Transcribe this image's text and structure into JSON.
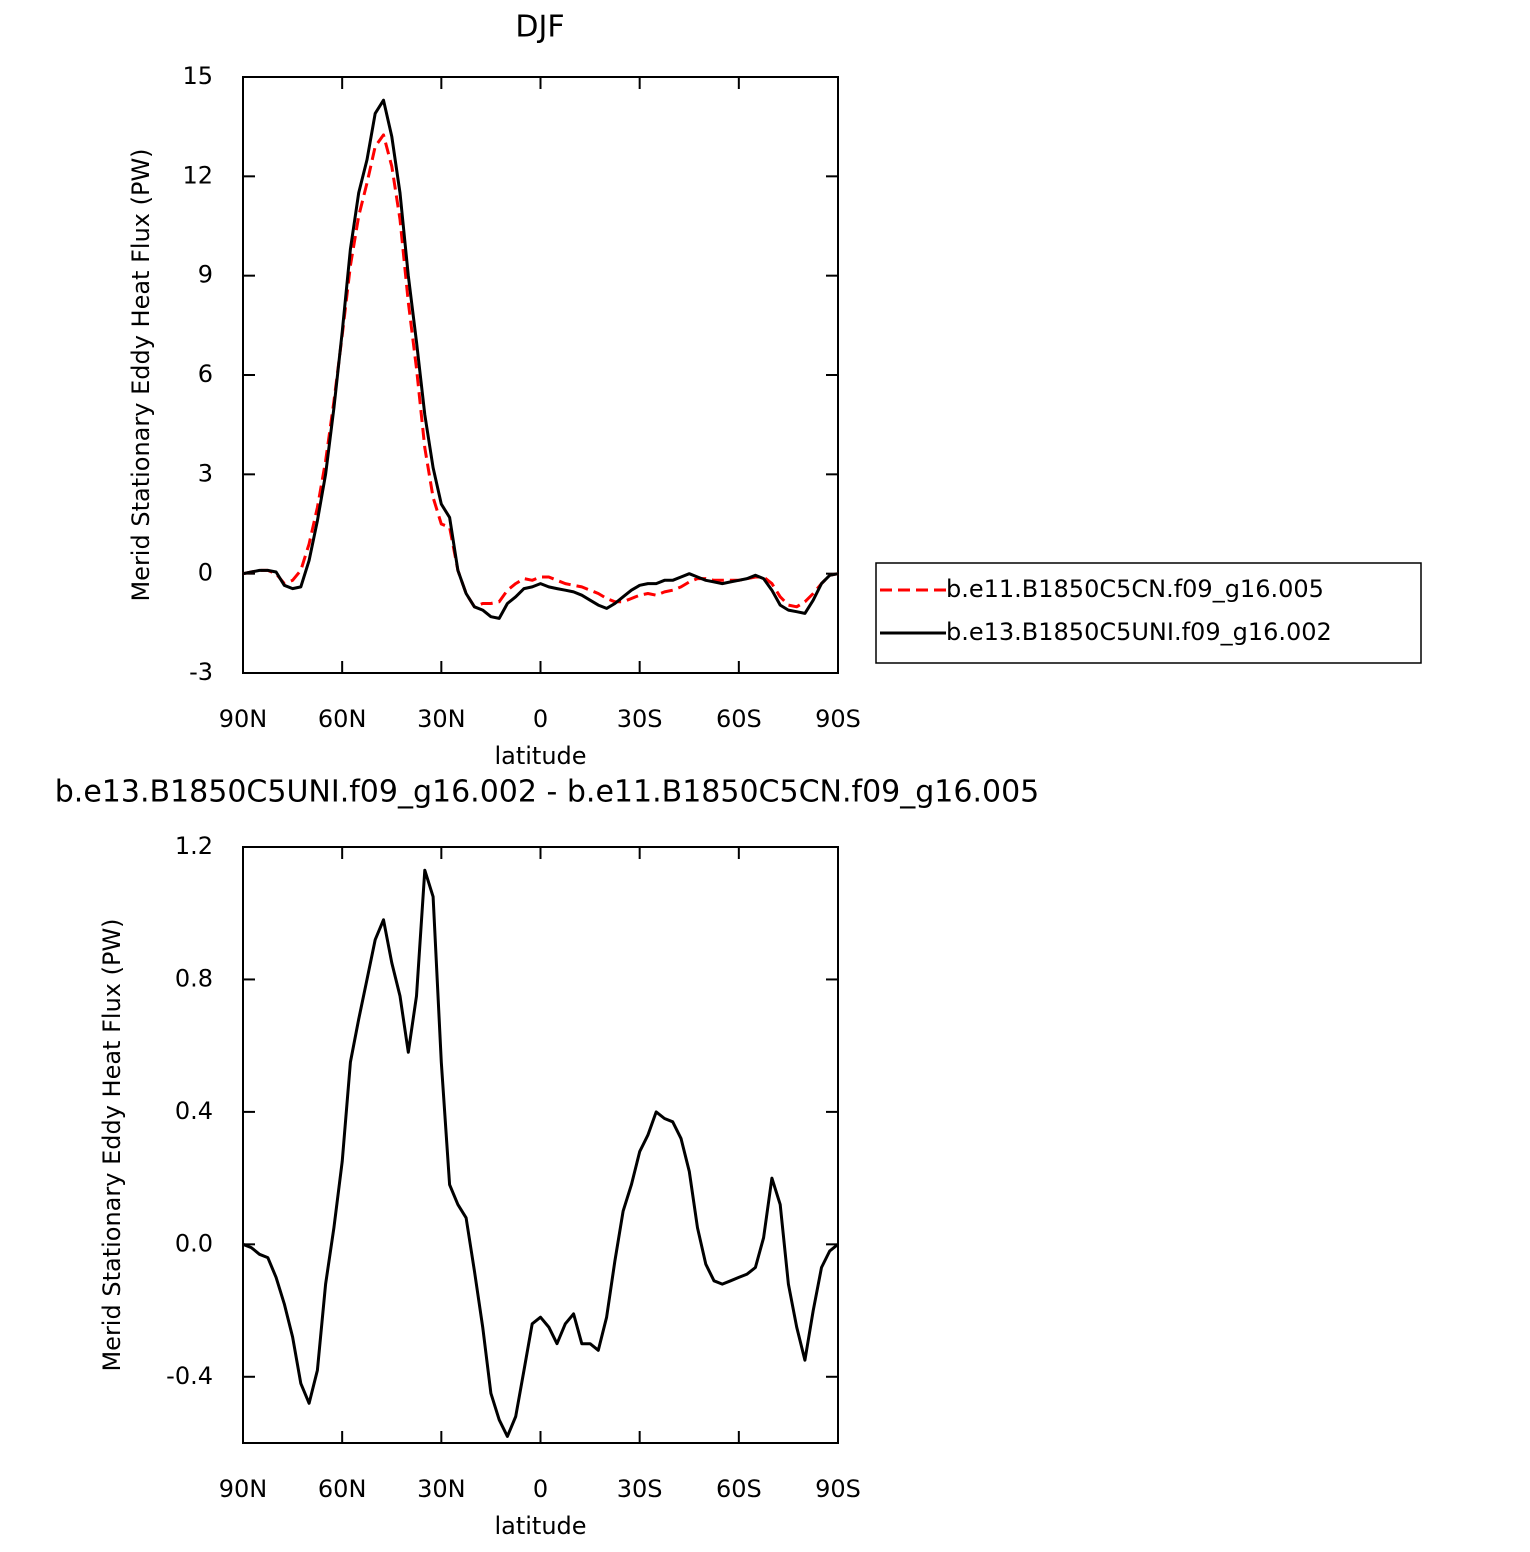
{
  "chart_data": [
    {
      "type": "line",
      "title": "DJF",
      "xlabel": "latitude",
      "ylabel": "Merid Stationary Eddy Heat Flux (PW)",
      "x": [
        90,
        87.5,
        85,
        82.5,
        80,
        77.5,
        75,
        72.5,
        70,
        67.5,
        65,
        62.5,
        60,
        57.5,
        55,
        52.5,
        50,
        47.5,
        45,
        42.5,
        40,
        37.5,
        35,
        32.5,
        30,
        27.5,
        25,
        22.5,
        20,
        17.5,
        15,
        12.5,
        10,
        7.5,
        5,
        2.5,
        0,
        -2.5,
        -5,
        -7.5,
        -10,
        -12.5,
        -15,
        -17.5,
        -20,
        -22.5,
        -25,
        -27.5,
        -30,
        -32.5,
        -35,
        -37.5,
        -40,
        -42.5,
        -45,
        -47.5,
        -50,
        -52.5,
        -55,
        -57.5,
        -60,
        -62.5,
        -65,
        -67.5,
        -70,
        -72.5,
        -75,
        -77.5,
        -80,
        -82.5,
        -85,
        -87.5,
        -90
      ],
      "series": [
        {
          "name": "b.e11.B1850C5CN.f09_g16.005",
          "color": "#ff0000",
          "dashed": true,
          "values": [
            0,
            0.05,
            0.1,
            0.1,
            0,
            -0.3,
            -0.2,
            0.1,
            0.9,
            2.0,
            3.4,
            5.2,
            7.2,
            9.3,
            10.8,
            11.8,
            12.9,
            13.25,
            12.3,
            10.7,
            8.2,
            6.2,
            3.8,
            2.3,
            1.5,
            1.4,
            0.1,
            -0.6,
            -1.0,
            -0.9,
            -0.9,
            -0.85,
            -0.5,
            -0.3,
            -0.15,
            -0.2,
            -0.1,
            -0.1,
            -0.2,
            -0.3,
            -0.35,
            -0.4,
            -0.5,
            -0.6,
            -0.75,
            -0.85,
            -0.85,
            -0.75,
            -0.65,
            -0.6,
            -0.65,
            -0.55,
            -0.5,
            -0.4,
            -0.25,
            -0.15,
            -0.15,
            -0.2,
            -0.2,
            -0.2,
            -0.2,
            -0.15,
            -0.1,
            -0.1,
            -0.3,
            -0.7,
            -0.95,
            -1.0,
            -0.85,
            -0.6,
            -0.3,
            -0.05,
            0
          ]
        },
        {
          "name": "b.e13.B1850C5UNI.f09_g16.002",
          "color": "#000000",
          "dashed": false,
          "values": [
            0,
            0.05,
            0.1,
            0.1,
            0.05,
            -0.35,
            -0.45,
            -0.4,
            0.4,
            1.6,
            3.0,
            5.0,
            7.3,
            9.8,
            11.5,
            12.5,
            13.9,
            14.3,
            13.2,
            11.5,
            9.0,
            7.0,
            4.8,
            3.2,
            2.1,
            1.7,
            0.1,
            -0.6,
            -1.0,
            -1.1,
            -1.3,
            -1.35,
            -0.9,
            -0.7,
            -0.45,
            -0.4,
            -0.3,
            -0.4,
            -0.45,
            -0.5,
            -0.55,
            -0.65,
            -0.8,
            -0.95,
            -1.05,
            -0.9,
            -0.7,
            -0.5,
            -0.35,
            -0.3,
            -0.3,
            -0.2,
            -0.2,
            -0.1,
            0,
            -0.1,
            -0.2,
            -0.25,
            -0.3,
            -0.25,
            -0.2,
            -0.15,
            -0.05,
            -0.15,
            -0.5,
            -0.95,
            -1.1,
            -1.15,
            -1.2,
            -0.8,
            -0.3,
            -0.05,
            0
          ]
        }
      ],
      "xlim": [
        90,
        -90
      ],
      "xticks": [
        {
          "value": 90,
          "label": "90N"
        },
        {
          "value": 60,
          "label": "60N"
        },
        {
          "value": 30,
          "label": "30N"
        },
        0,
        {
          "value": -30,
          "label": "30S"
        },
        {
          "value": -60,
          "label": "60S"
        },
        {
          "value": -90,
          "label": "90S"
        }
      ],
      "ylim": [
        -3,
        15
      ],
      "yticks": [
        -3,
        0,
        3,
        6,
        9,
        12,
        15
      ],
      "legend": "right"
    },
    {
      "type": "line",
      "title": "b.e13.B1850C5UNI.f09_g16.002 - b.e11.B1850C5CN.f09_g16.005",
      "xlabel": "latitude",
      "ylabel": "Merid Stationary Eddy Heat Flux (PW)",
      "x": [
        90,
        87.5,
        85,
        82.5,
        80,
        77.5,
        75,
        72.5,
        70,
        67.5,
        65,
        62.5,
        60,
        57.5,
        55,
        52.5,
        50,
        47.5,
        45,
        42.5,
        40,
        37.5,
        35,
        32.5,
        30,
        27.5,
        25,
        22.5,
        20,
        17.5,
        15,
        12.5,
        10,
        7.5,
        5,
        2.5,
        0,
        -2.5,
        -5,
        -7.5,
        -10,
        -12.5,
        -15,
        -17.5,
        -20,
        -22.5,
        -25,
        -27.5,
        -30,
        -32.5,
        -35,
        -37.5,
        -40,
        -42.5,
        -45,
        -47.5,
        -50,
        -52.5,
        -55,
        -57.5,
        -60,
        -62.5,
        -65,
        -67.5,
        -70,
        -72.5,
        -75,
        -77.5,
        -80,
        -82.5,
        -85,
        -87.5,
        -90
      ],
      "series": [
        {
          "color": "#000000",
          "dashed": false,
          "values": [
            0,
            -0.01,
            -0.03,
            -0.04,
            -0.1,
            -0.18,
            -0.28,
            -0.42,
            -0.48,
            -0.38,
            -0.12,
            0.05,
            0.25,
            0.55,
            0.68,
            0.8,
            0.92,
            0.98,
            0.85,
            0.75,
            0.58,
            0.75,
            1.13,
            1.05,
            0.55,
            0.18,
            0.12,
            0.08,
            -0.08,
            -0.25,
            -0.45,
            -0.53,
            -0.58,
            -0.52,
            -0.38,
            -0.24,
            -0.22,
            -0.25,
            -0.3,
            -0.24,
            -0.21,
            -0.3,
            -0.3,
            -0.32,
            -0.22,
            -0.05,
            0.1,
            0.18,
            0.28,
            0.33,
            0.4,
            0.38,
            0.37,
            0.32,
            0.22,
            0.05,
            -0.06,
            -0.11,
            -0.12,
            -0.11,
            -0.1,
            -0.09,
            -0.07,
            0.02,
            0.2,
            0.12,
            -0.12,
            -0.25,
            -0.35,
            -0.2,
            -0.07,
            -0.02,
            0
          ]
        }
      ],
      "xlim": [
        90,
        -90
      ],
      "xticks": [
        {
          "value": 90,
          "label": "90N"
        },
        {
          "value": 60,
          "label": "60N"
        },
        {
          "value": 30,
          "label": "30N"
        },
        0,
        {
          "value": -30,
          "label": "30S"
        },
        {
          "value": -60,
          "label": "60S"
        },
        {
          "value": -90,
          "label": "90S"
        }
      ],
      "ylim": [
        -0.6,
        1.2
      ],
      "yticks": [
        -0.4,
        {
          "value": 0,
          "label": "0.0"
        },
        0.4,
        0.8,
        1.2
      ]
    }
  ]
}
